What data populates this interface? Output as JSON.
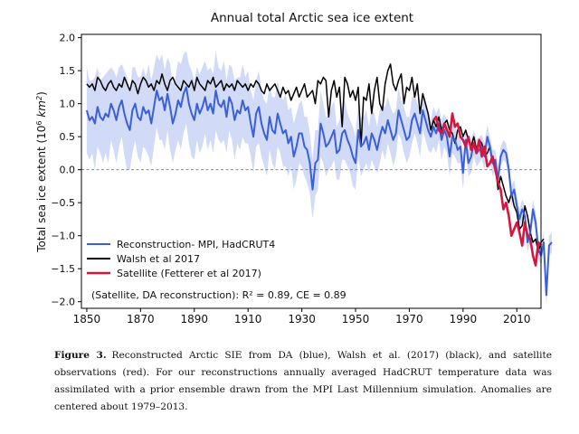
{
  "chart_data": {
    "type": "line",
    "title": "Annual total Arctic sea ice extent",
    "ylabel_main": "Total sea ice extent (10",
    "ylabel_sup": "6",
    "ylabel_unit": " km",
    "ylabel_sup2": "2",
    "ylabel_end": ")",
    "xlim": [
      1848,
      2019
    ],
    "ylim": [
      -2.1,
      2.05
    ],
    "xticks": [
      1850,
      1870,
      1890,
      1910,
      1930,
      1950,
      1970,
      1990,
      2010
    ],
    "yticks": [
      2.0,
      1.5,
      1.0,
      0.5,
      0.0,
      -0.5,
      -1.0,
      -1.5,
      -2.0
    ],
    "ytick_labels": [
      "2.0",
      "1.5",
      "1.0",
      "0.5",
      "0.0",
      "−0.5",
      "−1.0",
      "−1.5",
      "−2.0"
    ],
    "annotation": "(Satellite, DA reconstruction): R² = 0.89, CE = 0.89",
    "series": [
      {
        "name": "Reconstruction- MPI, HadCRUT4",
        "color": "#3a5fd8",
        "start_year": 1850,
        "values": [
          0.9,
          0.75,
          0.8,
          0.7,
          0.95,
          0.8,
          0.75,
          0.85,
          0.8,
          1.0,
          0.9,
          0.75,
          0.95,
          1.05,
          0.85,
          0.7,
          0.6,
          0.9,
          1.0,
          0.8,
          0.75,
          0.95,
          0.85,
          0.9,
          0.7,
          0.95,
          1.2,
          1.05,
          1.1,
          0.9,
          1.15,
          0.95,
          0.7,
          0.85,
          1.05,
          0.95,
          1.15,
          1.25,
          1.0,
          0.85,
          0.75,
          1.0,
          0.85,
          0.95,
          1.1,
          0.9,
          1.0,
          0.85,
          1.2,
          1.0,
          0.95,
          1.05,
          0.8,
          1.1,
          1.0,
          0.75,
          0.9,
          0.85,
          1.05,
          0.9,
          0.95,
          0.7,
          0.5,
          0.85,
          0.95,
          0.7,
          0.55,
          0.45,
          0.8,
          0.6,
          0.55,
          0.85,
          0.7,
          0.55,
          0.6,
          0.4,
          0.5,
          0.2,
          0.35,
          0.55,
          0.55,
          0.35,
          0.3,
          0.1,
          -0.3,
          0.1,
          0.15,
          0.7,
          0.55,
          0.35,
          0.4,
          0.5,
          0.6,
          0.25,
          0.3,
          0.55,
          0.6,
          0.45,
          0.35,
          0.2,
          0.1,
          0.6,
          0.35,
          0.4,
          0.5,
          0.3,
          0.55,
          0.45,
          0.3,
          0.5,
          0.65,
          0.55,
          0.75,
          0.6,
          0.45,
          0.55,
          0.9,
          0.75,
          0.6,
          0.45,
          0.5,
          0.75,
          0.85,
          0.7,
          0.55,
          0.9,
          0.75,
          0.6,
          0.5,
          0.65,
          0.55,
          0.7,
          0.45,
          0.6,
          0.5,
          0.2,
          0.5,
          0.45,
          0.3,
          0.35,
          -0.05,
          0.45,
          0.1,
          0.2,
          0.4,
          0.25,
          0.3,
          0.35,
          0.2,
          0.5,
          0.35,
          0.1,
          0.15,
          -0.15,
          0.2,
          0.3,
          0.25,
          0.0,
          -0.4,
          -0.3,
          -0.55,
          -0.75,
          -0.6,
          -0.7,
          -1.1,
          -0.95,
          -0.6,
          -0.8,
          -1.2,
          -1.3,
          -1.1,
          -1.9,
          -1.15,
          -1.1
        ]
      },
      {
        "name": "Walsh et al 2017",
        "color": "#000000",
        "start_year": 1850,
        "values": [
          1.3,
          1.25,
          1.3,
          1.2,
          1.4,
          1.35,
          1.25,
          1.2,
          1.3,
          1.35,
          1.25,
          1.2,
          1.3,
          1.25,
          1.4,
          1.3,
          1.2,
          1.35,
          1.3,
          1.15,
          1.3,
          1.4,
          1.35,
          1.25,
          1.3,
          1.2,
          1.35,
          1.3,
          1.45,
          1.3,
          1.2,
          1.35,
          1.4,
          1.3,
          1.25,
          1.2,
          1.35,
          1.3,
          1.25,
          1.35,
          1.2,
          1.4,
          1.3,
          1.25,
          1.2,
          1.35,
          1.3,
          1.4,
          1.25,
          1.3,
          1.35,
          1.2,
          1.3,
          1.25,
          1.3,
          1.2,
          1.35,
          1.3,
          1.25,
          1.3,
          1.2,
          1.3,
          1.25,
          1.35,
          1.3,
          1.2,
          1.15,
          1.3,
          1.2,
          1.25,
          1.3,
          1.2,
          1.1,
          1.25,
          1.15,
          1.2,
          1.05,
          1.15,
          1.25,
          1.1,
          1.2,
          1.3,
          1.1,
          1.15,
          1.2,
          1.0,
          1.35,
          1.3,
          1.4,
          1.35,
          0.8,
          1.2,
          1.35,
          1.1,
          1.25,
          0.65,
          1.4,
          1.3,
          1.1,
          1.2,
          1.05,
          1.25,
          0.35,
          1.1,
          1.05,
          1.3,
          0.85,
          1.2,
          1.4,
          1.0,
          0.9,
          1.3,
          1.5,
          1.6,
          1.3,
          1.2,
          1.35,
          1.45,
          1.0,
          1.25,
          1.2,
          1.4,
          1.1,
          1.3,
          0.85,
          1.15,
          1.0,
          0.85,
          0.6,
          0.75,
          0.65,
          0.8,
          0.6,
          0.7,
          0.75,
          0.6,
          0.55,
          0.4,
          0.6,
          0.65,
          0.5,
          0.6,
          0.45,
          0.35,
          0.5,
          0.3,
          0.45,
          0.4,
          0.2,
          0.25,
          0.35,
          0.1,
          0.05,
          -0.3,
          -0.1,
          -0.25,
          -0.4,
          -0.5,
          -0.35,
          -0.55,
          -0.65,
          -0.9,
          -0.85,
          -0.55,
          -0.7,
          -0.95,
          -1.1,
          -1.05,
          -1.25,
          -1.1,
          -1.05
        ]
      },
      {
        "name": "Satellite (Fetterer et al 2017)",
        "color": "#d6163f",
        "start_year": 1979,
        "values": [
          0.75,
          0.8,
          0.6,
          0.55,
          0.7,
          0.6,
          0.5,
          0.85,
          0.65,
          0.7,
          0.5,
          0.45,
          0.35,
          0.5,
          0.3,
          0.4,
          0.25,
          0.45,
          0.2,
          0.35,
          0.05,
          0.1,
          0.2,
          0.0,
          -0.2,
          -0.3,
          -0.6,
          -0.5,
          -0.7,
          -1.0,
          -0.9,
          -0.8,
          -0.95,
          -1.15,
          -0.8,
          -1.0,
          -1.05,
          -1.3,
          -1.45,
          -1.1,
          -1.15
        ]
      }
    ],
    "band_offsets": [
      0.65,
      0.6,
      0.55,
      0.7,
      0.6,
      0.55,
      0.65,
      0.6,
      0.7,
      0.55,
      0.6,
      0.65,
      0.6,
      0.55,
      0.65,
      0.7,
      0.6,
      0.65,
      0.55,
      0.6,
      0.65,
      0.6,
      0.55,
      0.7,
      0.65,
      0.6,
      0.55,
      0.6,
      0.65,
      0.6,
      0.55,
      0.65,
      0.6,
      0.55,
      0.6,
      0.65,
      0.6,
      0.55,
      0.6,
      0.65,
      0.6,
      0.55,
      0.6,
      0.6,
      0.55,
      0.6,
      0.55,
      0.6,
      0.6,
      0.55,
      0.55,
      0.6,
      0.55,
      0.5,
      0.55,
      0.6,
      0.5,
      0.55,
      0.55,
      0.5,
      0.55,
      0.5,
      0.55,
      0.5,
      0.55,
      0.5,
      0.5,
      0.55,
      0.5,
      0.5,
      0.55,
      0.5,
      0.45,
      0.5,
      0.55,
      0.5,
      0.45,
      0.5,
      0.5,
      0.45,
      0.5,
      0.45,
      0.5,
      0.45,
      0.45,
      0.5,
      0.45,
      0.5,
      0.45,
      0.45,
      0.4,
      0.45,
      0.45,
      0.4,
      0.45,
      0.4,
      0.45,
      0.4,
      0.4,
      0.45,
      0.4,
      0.4,
      0.45,
      0.4,
      0.4,
      0.35,
      0.4,
      0.4,
      0.35,
      0.4,
      0.35,
      0.4,
      0.35,
      0.35,
      0.4,
      0.35,
      0.35,
      0.3,
      0.35,
      0.35,
      0.3,
      0.35,
      0.3,
      0.3,
      0.35,
      0.3,
      0.3,
      0.3,
      0.25,
      0.3,
      0.3,
      0.25,
      0.3,
      0.25,
      0.25,
      0.3,
      0.25,
      0.25,
      0.2,
      0.25,
      0.25,
      0.2,
      0.2,
      0.25,
      0.2,
      0.2,
      0.2,
      0.18,
      0.2,
      0.18,
      0.15,
      0.2,
      0.15,
      0.18,
      0.15,
      0.15,
      0.15,
      0.15,
      0.15,
      0.15,
      0.15,
      0.15,
      0.15,
      0.15,
      0.15,
      0.15,
      0.15,
      0.15,
      0.15,
      0.15,
      0.15,
      0.15
    ]
  },
  "caption": {
    "label": "Figure 3.",
    "text": "Reconstructed Arctic SIE from DA (blue), Walsh et al. (2017) (black), and satellite observations (red). For our reconstructions annually averaged HadCRUT temperature data was assimilated with a prior ensemble drawn from the MPI Last Millennium simulation. Anomalies are centered about 1979–2013."
  }
}
